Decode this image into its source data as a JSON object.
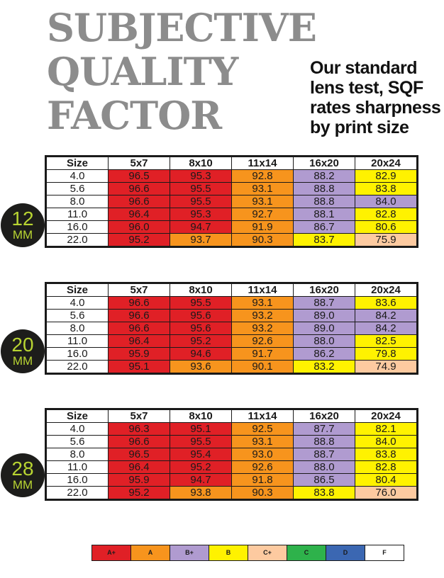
{
  "title_lines": [
    "SUBJECTIVE",
    "QUALITY",
    "FACTOR"
  ],
  "subtitle": "Our standard lens test, SQF rates sharpness by print size",
  "colors": {
    "A+": "#e02026",
    "A": "#f7941d",
    "B+": "#b09bd0",
    "B": "#fff200",
    "C+": "#fdcaa0",
    "C": "#2eb24b",
    "D": "#3b67b2",
    "F": "#ffffff"
  },
  "columns": [
    "Size",
    "5x7",
    "8x10",
    "11x14",
    "16x20",
    "20x24"
  ],
  "tables": [
    {
      "focal": "12",
      "unit": "MM",
      "rows": [
        {
          "size": "4.0",
          "values": [
            "96.5",
            "95.3",
            "92.8",
            "88.2",
            "82.9"
          ],
          "grades": [
            "A+",
            "A+",
            "A",
            "B+",
            "B"
          ]
        },
        {
          "size": "5.6",
          "values": [
            "96.6",
            "95.5",
            "93.1",
            "88.8",
            "83.8"
          ],
          "grades": [
            "A+",
            "A+",
            "A",
            "B+",
            "B"
          ]
        },
        {
          "size": "8.0",
          "values": [
            "96.6",
            "95.5",
            "93.1",
            "88.8",
            "84.0"
          ],
          "grades": [
            "A+",
            "A+",
            "A",
            "B+",
            "B+"
          ]
        },
        {
          "size": "11.0",
          "values": [
            "96.4",
            "95.3",
            "92.7",
            "88.1",
            "82.8"
          ],
          "grades": [
            "A+",
            "A+",
            "A",
            "B+",
            "B"
          ]
        },
        {
          "size": "16.0",
          "values": [
            "96.0",
            "94.7",
            "91.9",
            "86.7",
            "80.6"
          ],
          "grades": [
            "A+",
            "A+",
            "A",
            "B+",
            "B"
          ]
        },
        {
          "size": "22.0",
          "values": [
            "95.2",
            "93.7",
            "90.3",
            "83.7",
            "75.9"
          ],
          "grades": [
            "A+",
            "A",
            "A",
            "B",
            "C+"
          ]
        }
      ]
    },
    {
      "focal": "20",
      "unit": "MM",
      "rows": [
        {
          "size": "4.0",
          "values": [
            "96.6",
            "95.5",
            "93.1",
            "88.7",
            "83.6"
          ],
          "grades": [
            "A+",
            "A+",
            "A",
            "B+",
            "B"
          ]
        },
        {
          "size": "5.6",
          "values": [
            "96.6",
            "95.6",
            "93.2",
            "89.0",
            "84.2"
          ],
          "grades": [
            "A+",
            "A+",
            "A",
            "B+",
            "B+"
          ]
        },
        {
          "size": "8.0",
          "values": [
            "96.6",
            "95.6",
            "93.2",
            "89.0",
            "84.2"
          ],
          "grades": [
            "A+",
            "A+",
            "A",
            "B+",
            "B+"
          ]
        },
        {
          "size": "11.0",
          "values": [
            "96.4",
            "95.2",
            "92.6",
            "88.0",
            "82.5"
          ],
          "grades": [
            "A+",
            "A+",
            "A",
            "B+",
            "B"
          ]
        },
        {
          "size": "16.0",
          "values": [
            "95.9",
            "94.6",
            "91.7",
            "86.2",
            "79.8"
          ],
          "grades": [
            "A+",
            "A+",
            "A",
            "B+",
            "B"
          ]
        },
        {
          "size": "22.0",
          "values": [
            "95.1",
            "93.6",
            "90.1",
            "83.2",
            "74.9"
          ],
          "grades": [
            "A+",
            "A",
            "A",
            "B",
            "C+"
          ]
        }
      ]
    },
    {
      "focal": "28",
      "unit": "MM",
      "rows": [
        {
          "size": "4.0",
          "values": [
            "96.3",
            "95.1",
            "92.5",
            "87.7",
            "82.1"
          ],
          "grades": [
            "A+",
            "A+",
            "A",
            "B+",
            "B"
          ]
        },
        {
          "size": "5.6",
          "values": [
            "96.6",
            "95.5",
            "93.1",
            "88.8",
            "84.0"
          ],
          "grades": [
            "A+",
            "A+",
            "A",
            "B+",
            "B"
          ]
        },
        {
          "size": "8.0",
          "values": [
            "96.5",
            "95.4",
            "93.0",
            "88.7",
            "83.8"
          ],
          "grades": [
            "A+",
            "A+",
            "A",
            "B+",
            "B"
          ]
        },
        {
          "size": "11.0",
          "values": [
            "96.4",
            "95.2",
            "92.6",
            "88.0",
            "82.8"
          ],
          "grades": [
            "A+",
            "A+",
            "A",
            "B+",
            "B"
          ]
        },
        {
          "size": "16.0",
          "values": [
            "95.9",
            "94.7",
            "91.8",
            "86.5",
            "80.4"
          ],
          "grades": [
            "A+",
            "A+",
            "A",
            "B+",
            "B"
          ]
        },
        {
          "size": "22.0",
          "values": [
            "95.2",
            "93.8",
            "90.3",
            "83.8",
            "76.0"
          ],
          "grades": [
            "A+",
            "A",
            "A",
            "B",
            "C+"
          ]
        }
      ]
    }
  ],
  "legend": [
    "A+",
    "A",
    "B+",
    "B",
    "C+",
    "C",
    "D",
    "F"
  ]
}
